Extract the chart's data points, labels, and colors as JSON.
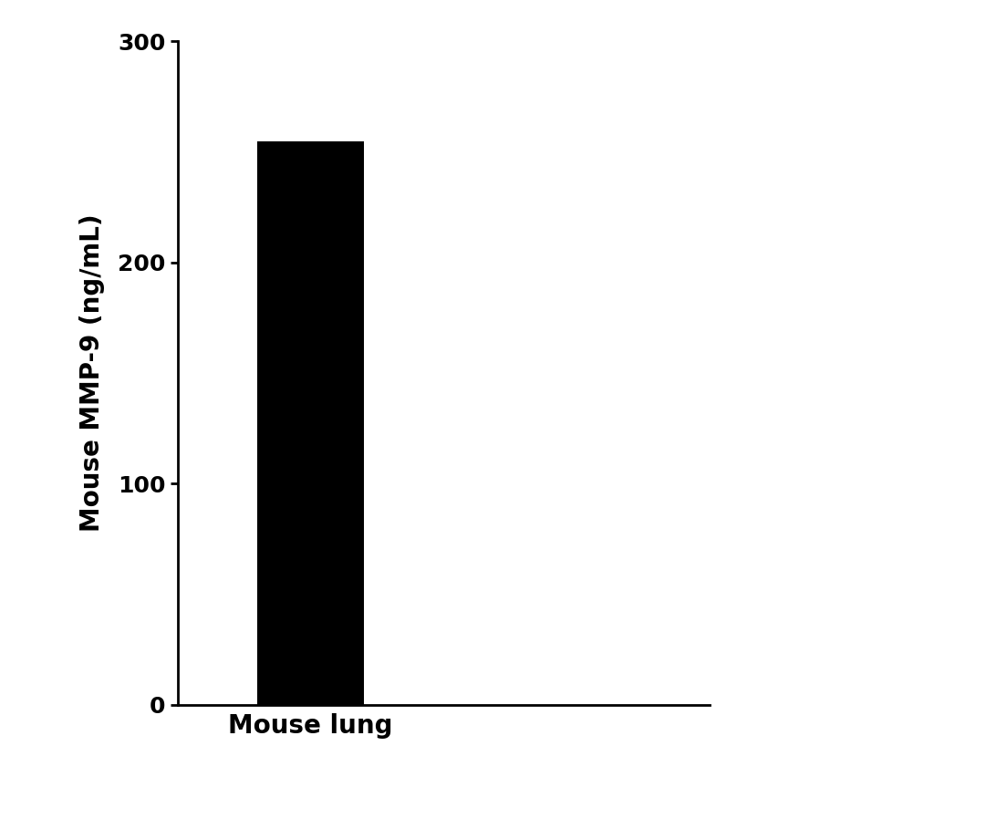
{
  "categories": [
    "Mouse lung"
  ],
  "values": [
    255.0
  ],
  "bar_color": "#000000",
  "bar_width": 0.4,
  "ylabel": "Mouse MMP-9 (ng/mL)",
  "ylim": [
    0,
    300
  ],
  "yticks": [
    0,
    100,
    200,
    300
  ],
  "xlabel_fontsize": 20,
  "ylabel_fontsize": 20,
  "tick_fontsize": 18,
  "background_color": "#ffffff",
  "spine_linewidth": 2.0,
  "xlim": [
    -0.5,
    1.5
  ]
}
